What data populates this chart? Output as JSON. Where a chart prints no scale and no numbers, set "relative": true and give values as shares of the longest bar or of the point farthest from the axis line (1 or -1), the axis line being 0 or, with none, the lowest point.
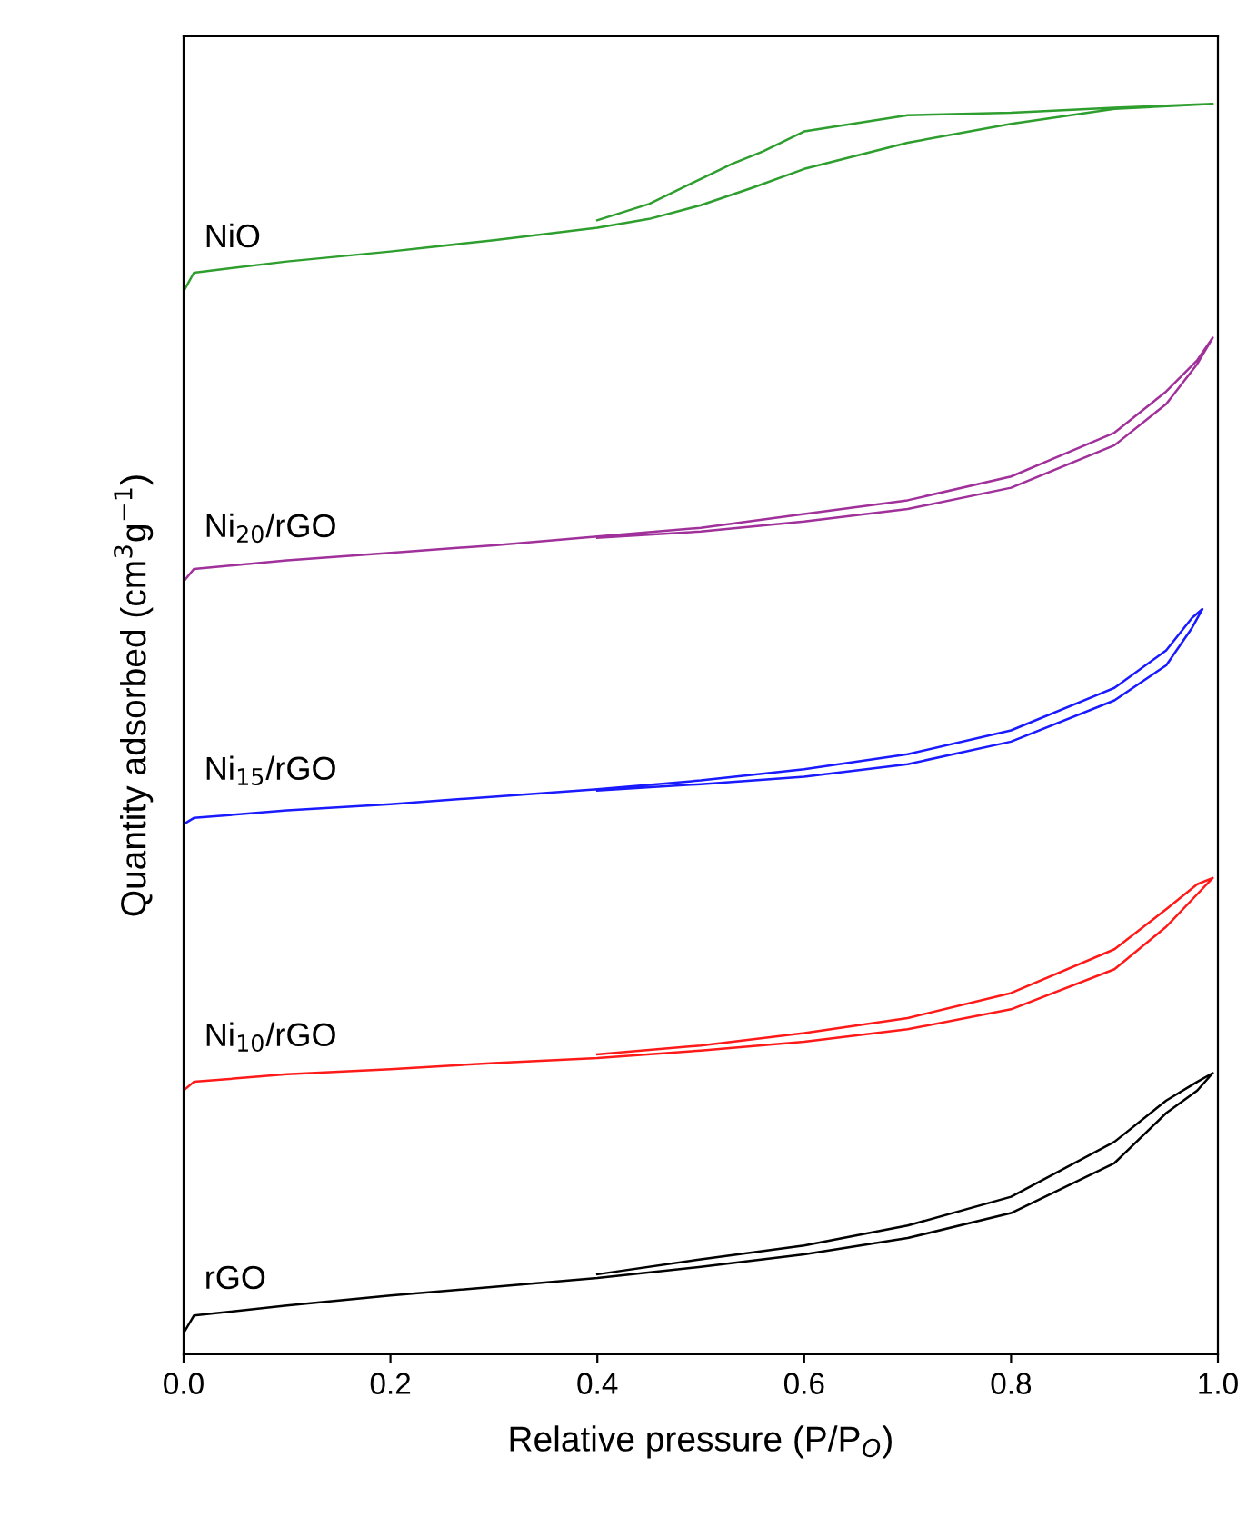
{
  "chart_data": {
    "type": "line",
    "relative": true,
    "xlabel": "Relative pressure (P/P$_{O}$)",
    "ylabel": "Quantity adsorbed (cm$^{3}$g$^{−1}$)",
    "xlim": [
      0,
      1.0
    ],
    "xticks": [
      {
        "value": 0,
        "label": "0.0"
      },
      {
        "value": 0.2,
        "label": "0.2"
      },
      {
        "value": 0.4,
        "label": "0.4"
      },
      {
        "value": 0.6,
        "label": "0.6"
      },
      {
        "value": 0.8,
        "label": "0.8"
      },
      {
        "value": 1.0,
        "label": "1.0"
      }
    ],
    "tick_labels": "x",
    "grid": false,
    "legend": false,
    "line_style": "solid",
    "marker": "none",
    "series": [
      {
        "name": "rGO",
        "color": "#000000",
        "x": [
          0,
          0.01,
          0.1,
          0.2,
          0.3,
          0.4,
          0.5,
          0.6,
          0.7,
          0.8,
          0.9,
          0.95,
          0.98,
          0.995,
          0.98,
          0.95,
          0.9,
          0.8,
          0.7,
          0.6,
          0.5,
          0.4
        ],
        "values": [
          0.017,
          0.031,
          0.039,
          0.047,
          0.054,
          0.061,
          0.07,
          0.08,
          0.093,
          0.113,
          0.153,
          0.193,
          0.211,
          0.225,
          0.218,
          0.203,
          0.17,
          0.126,
          0.103,
          0.087,
          0.076,
          0.064
        ]
      },
      {
        "name": "Ni$_{10}$/rGO",
        "color": "#ff1a1a",
        "x": [
          0,
          0.01,
          0.1,
          0.2,
          0.3,
          0.4,
          0.5,
          0.6,
          0.7,
          0.8,
          0.9,
          0.95,
          0.98,
          0.995,
          0.98,
          0.95,
          0.9,
          0.8,
          0.7,
          0.6,
          0.5,
          0.4
        ],
        "values": [
          0.211,
          0.218,
          0.224,
          0.228,
          0.233,
          0.237,
          0.243,
          0.25,
          0.26,
          0.276,
          0.308,
          0.342,
          0.368,
          0.381,
          0.376,
          0.356,
          0.324,
          0.289,
          0.269,
          0.257,
          0.247,
          0.24
        ]
      },
      {
        "name": "Ni$_{15}$/rGO",
        "color": "#1a1aff",
        "x": [
          0,
          0.01,
          0.1,
          0.2,
          0.3,
          0.4,
          0.5,
          0.6,
          0.7,
          0.8,
          0.9,
          0.95,
          0.975,
          0.985,
          0.975,
          0.95,
          0.9,
          0.8,
          0.7,
          0.6,
          0.5,
          0.4
        ],
        "values": [
          0.424,
          0.429,
          0.435,
          0.44,
          0.446,
          0.452,
          0.459,
          0.468,
          0.48,
          0.499,
          0.533,
          0.563,
          0.589,
          0.596,
          0.581,
          0.551,
          0.523,
          0.49,
          0.472,
          0.462,
          0.456,
          0.451
        ]
      },
      {
        "name": "Ni$_{20}$/rGO",
        "color": "#a0309a",
        "x": [
          0,
          0.01,
          0.1,
          0.2,
          0.3,
          0.4,
          0.5,
          0.6,
          0.7,
          0.8,
          0.9,
          0.95,
          0.98,
          0.995,
          0.98,
          0.95,
          0.9,
          0.8,
          0.7,
          0.6,
          0.5,
          0.4
        ],
        "values": [
          0.618,
          0.628,
          0.635,
          0.641,
          0.647,
          0.654,
          0.661,
          0.672,
          0.683,
          0.702,
          0.737,
          0.77,
          0.795,
          0.813,
          0.792,
          0.76,
          0.727,
          0.693,
          0.676,
          0.666,
          0.658,
          0.653
        ]
      },
      {
        "name": "NiO",
        "color": "#2e9e2e",
        "x": [
          0,
          0.01,
          0.1,
          0.2,
          0.3,
          0.4,
          0.45,
          0.5,
          0.55,
          0.6,
          0.7,
          0.8,
          0.9,
          0.995,
          0.9,
          0.8,
          0.7,
          0.6,
          0.56,
          0.53,
          0.5,
          0.45,
          0.4
        ],
        "values": [
          0.85,
          0.865,
          0.874,
          0.882,
          0.891,
          0.901,
          0.908,
          0.919,
          0.933,
          0.948,
          0.969,
          0.984,
          0.996,
          1.0,
          0.997,
          0.993,
          0.991,
          0.978,
          0.962,
          0.952,
          0.94,
          0.92,
          0.907
        ]
      }
    ]
  }
}
